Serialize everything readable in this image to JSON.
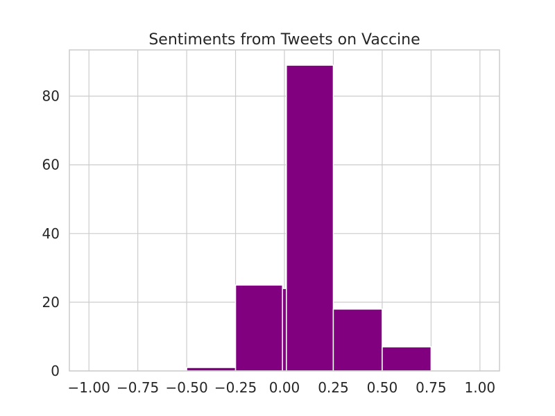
{
  "chart_data": {
    "type": "bar",
    "title": "Sentiments from Tweets on Vaccine",
    "xlabel": "",
    "ylabel": "",
    "bar_color": "#800080",
    "grid_color": "#cccccc",
    "grid": true,
    "xlim": [
      -1.1,
      1.1
    ],
    "ylim": [
      0,
      93.45
    ],
    "x_ticks": [
      {
        "value": -1.0,
        "label": "−1.00"
      },
      {
        "value": -0.75,
        "label": "−0.75"
      },
      {
        "value": -0.5,
        "label": "−0.50"
      },
      {
        "value": -0.25,
        "label": "−0.25"
      },
      {
        "value": 0.0,
        "label": "0.00"
      },
      {
        "value": 0.25,
        "label": "0.25"
      },
      {
        "value": 0.5,
        "label": "0.50"
      },
      {
        "value": 0.75,
        "label": "0.75"
      },
      {
        "value": 1.0,
        "label": "1.00"
      }
    ],
    "y_ticks": [
      {
        "value": 0,
        "label": "0"
      },
      {
        "value": 20,
        "label": "20"
      },
      {
        "value": 40,
        "label": "40"
      },
      {
        "value": 60,
        "label": "60"
      },
      {
        "value": 80,
        "label": "80"
      }
    ],
    "bins": [
      {
        "x0": -1.0,
        "x1": -0.75,
        "count": 0
      },
      {
        "x0": -0.75,
        "x1": -0.5,
        "count": 0
      },
      {
        "x0": -0.5,
        "x1": -0.25,
        "count": 1
      },
      {
        "x0": -0.25,
        "x1": -0.01,
        "count": 25
      },
      {
        "x0": -0.01,
        "x1": 0.01,
        "count": 24
      },
      {
        "x0": 0.01,
        "x1": 0.25,
        "count": 89
      },
      {
        "x0": 0.25,
        "x1": 0.5,
        "count": 18
      },
      {
        "x0": 0.5,
        "x1": 0.75,
        "count": 7
      },
      {
        "x0": 0.75,
        "x1": 1.0,
        "count": 0
      }
    ]
  }
}
